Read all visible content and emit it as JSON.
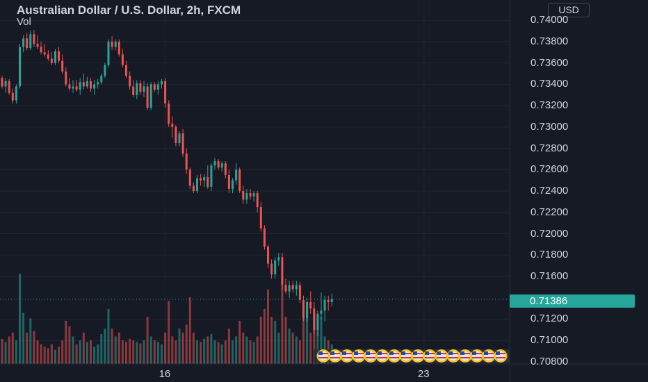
{
  "header": {
    "title": "Australian Dollar / U.S. Dollar, 2h, FXCM",
    "indicator": "Vol",
    "currency_button": "USD"
  },
  "price_axis": {
    "ticks": [
      "0.74000",
      "0.73800",
      "0.73600",
      "0.73400",
      "0.73200",
      "0.73000",
      "0.72800",
      "0.72600",
      "0.72400",
      "0.72200",
      "0.72000",
      "0.71800",
      "0.71600",
      "0.71200",
      "0.71000",
      "0.70800"
    ],
    "current_price": "0.71386"
  },
  "time_axis": {
    "ticks": [
      "16",
      "23"
    ]
  },
  "colors": {
    "background": "#161a25",
    "up": "#26a69a",
    "down": "#ef5350",
    "grid": "#232632"
  },
  "chart_data": {
    "type": "candlestick",
    "symbol": "AUDUSD",
    "interval": "2h",
    "source": "FXCM",
    "ylim": [
      0.7078,
      0.7419
    ],
    "grid": true,
    "current_price": 0.71386,
    "x_ticks": [
      {
        "label": "16",
        "index": 46
      },
      {
        "label": "23",
        "index": 119
      }
    ],
    "candles": [
      [
        0.7346,
        0.7348,
        0.7336,
        0.7338,
        32
      ],
      [
        0.7338,
        0.7346,
        0.7332,
        0.7343,
        28
      ],
      [
        0.7343,
        0.7345,
        0.733,
        0.7332,
        35
      ],
      [
        0.7332,
        0.7336,
        0.7322,
        0.7325,
        40
      ],
      [
        0.7325,
        0.734,
        0.7322,
        0.7338,
        30
      ],
      [
        0.7338,
        0.7378,
        0.7336,
        0.7375,
        115
      ],
      [
        0.7375,
        0.7386,
        0.737,
        0.7383,
        65
      ],
      [
        0.7383,
        0.7388,
        0.7372,
        0.7374,
        40
      ],
      [
        0.7374,
        0.739,
        0.7372,
        0.7387,
        58
      ],
      [
        0.7387,
        0.7391,
        0.7375,
        0.7378,
        42
      ],
      [
        0.7378,
        0.7386,
        0.7373,
        0.7375,
        30
      ],
      [
        0.7375,
        0.738,
        0.7368,
        0.737,
        25
      ],
      [
        0.737,
        0.7378,
        0.7366,
        0.7368,
        22
      ],
      [
        0.7368,
        0.7372,
        0.7362,
        0.7364,
        20
      ],
      [
        0.7364,
        0.737,
        0.7358,
        0.736,
        25
      ],
      [
        0.736,
        0.7373,
        0.7358,
        0.7371,
        18
      ],
      [
        0.7371,
        0.7375,
        0.736,
        0.7362,
        22
      ],
      [
        0.7362,
        0.7368,
        0.735,
        0.7352,
        30
      ],
      [
        0.7352,
        0.7356,
        0.7338,
        0.734,
        55
      ],
      [
        0.734,
        0.7346,
        0.7334,
        0.7336,
        48
      ],
      [
        0.7336,
        0.7344,
        0.7332,
        0.7338,
        35
      ],
      [
        0.7338,
        0.7344,
        0.7333,
        0.7335,
        25
      ],
      [
        0.7335,
        0.7346,
        0.733,
        0.7342,
        30
      ],
      [
        0.7342,
        0.735,
        0.7335,
        0.7338,
        40
      ],
      [
        0.7338,
        0.7347,
        0.7336,
        0.7343,
        28
      ],
      [
        0.7343,
        0.7346,
        0.7333,
        0.7336,
        30
      ],
      [
        0.7336,
        0.7344,
        0.733,
        0.734,
        22
      ],
      [
        0.734,
        0.7345,
        0.7336,
        0.7342,
        25
      ],
      [
        0.7342,
        0.735,
        0.734,
        0.7348,
        38
      ],
      [
        0.7348,
        0.736,
        0.7346,
        0.7358,
        45
      ],
      [
        0.7358,
        0.7382,
        0.7356,
        0.738,
        70
      ],
      [
        0.738,
        0.7385,
        0.7372,
        0.7375,
        45
      ],
      [
        0.7375,
        0.7382,
        0.7372,
        0.738,
        35
      ],
      [
        0.738,
        0.7382,
        0.7366,
        0.7368,
        40
      ],
      [
        0.7368,
        0.7373,
        0.7356,
        0.7358,
        30
      ],
      [
        0.7358,
        0.7362,
        0.7346,
        0.7348,
        28
      ],
      [
        0.7348,
        0.7352,
        0.7335,
        0.7338,
        32
      ],
      [
        0.7338,
        0.7344,
        0.7328,
        0.733,
        30
      ],
      [
        0.733,
        0.7344,
        0.7326,
        0.7341,
        28
      ],
      [
        0.7341,
        0.7344,
        0.733,
        0.7333,
        26
      ],
      [
        0.7333,
        0.7343,
        0.7328,
        0.7338,
        30
      ],
      [
        0.7338,
        0.7341,
        0.7316,
        0.7318,
        60
      ],
      [
        0.7318,
        0.7342,
        0.7316,
        0.734,
        35
      ],
      [
        0.734,
        0.7342,
        0.7333,
        0.7335,
        30
      ],
      [
        0.7335,
        0.7343,
        0.733,
        0.734,
        28
      ],
      [
        0.734,
        0.7345,
        0.7336,
        0.7343,
        25
      ],
      [
        0.7343,
        0.7346,
        0.7318,
        0.7322,
        40
      ],
      [
        0.7322,
        0.7325,
        0.73,
        0.7303,
        80
      ],
      [
        0.7303,
        0.731,
        0.729,
        0.73,
        35
      ],
      [
        0.73,
        0.7302,
        0.7282,
        0.7285,
        30
      ],
      [
        0.7285,
        0.7296,
        0.7282,
        0.7294,
        45
      ],
      [
        0.7294,
        0.7298,
        0.7272,
        0.7275,
        40
      ],
      [
        0.7275,
        0.728,
        0.7256,
        0.726,
        50
      ],
      [
        0.726,
        0.7262,
        0.7242,
        0.7245,
        85
      ],
      [
        0.7245,
        0.7248,
        0.7238,
        0.724,
        40
      ],
      [
        0.724,
        0.7255,
        0.7238,
        0.7252,
        30
      ],
      [
        0.7252,
        0.7256,
        0.7245,
        0.725,
        28
      ],
      [
        0.725,
        0.7256,
        0.7244,
        0.7253,
        32
      ],
      [
        0.7253,
        0.7264,
        0.7242,
        0.7244,
        35
      ],
      [
        0.7244,
        0.7266,
        0.724,
        0.7264,
        38
      ],
      [
        0.7264,
        0.7271,
        0.726,
        0.7268,
        30
      ],
      [
        0.7268,
        0.727,
        0.726,
        0.7262,
        28
      ],
      [
        0.7262,
        0.7268,
        0.7258,
        0.7266,
        25
      ],
      [
        0.7266,
        0.7268,
        0.7252,
        0.7255,
        30
      ],
      [
        0.7255,
        0.726,
        0.7238,
        0.7242,
        45
      ],
      [
        0.7242,
        0.7252,
        0.7238,
        0.725,
        30
      ],
      [
        0.725,
        0.7266,
        0.7246,
        0.726,
        35
      ],
      [
        0.726,
        0.7262,
        0.7238,
        0.724,
        55
      ],
      [
        0.724,
        0.7245,
        0.7228,
        0.7232,
        40
      ],
      [
        0.7232,
        0.7242,
        0.7228,
        0.7238,
        35
      ],
      [
        0.7238,
        0.7242,
        0.7232,
        0.7235,
        30
      ],
      [
        0.7235,
        0.724,
        0.723,
        0.7238,
        28
      ],
      [
        0.7238,
        0.724,
        0.722,
        0.7225,
        35
      ],
      [
        0.7225,
        0.723,
        0.7202,
        0.7205,
        60
      ],
      [
        0.7205,
        0.7208,
        0.7185,
        0.7188,
        70
      ],
      [
        0.7188,
        0.719,
        0.7168,
        0.7172,
        95
      ],
      [
        0.7172,
        0.7176,
        0.7158,
        0.7162,
        60
      ],
      [
        0.7162,
        0.7178,
        0.7158,
        0.7175,
        55
      ],
      [
        0.7175,
        0.7182,
        0.717,
        0.7178,
        40
      ],
      [
        0.7178,
        0.7182,
        0.7148,
        0.7152,
        100
      ],
      [
        0.7152,
        0.7158,
        0.7144,
        0.7146,
        60
      ],
      [
        0.7146,
        0.7156,
        0.714,
        0.7152,
        45
      ],
      [
        0.7152,
        0.7156,
        0.7145,
        0.7148,
        40
      ],
      [
        0.7148,
        0.7156,
        0.7142,
        0.7152,
        35
      ],
      [
        0.7152,
        0.7155,
        0.7135,
        0.7138,
        30
      ],
      [
        0.7138,
        0.7142,
        0.7118,
        0.7121,
        65
      ],
      [
        0.7121,
        0.714,
        0.7118,
        0.7136,
        70
      ],
      [
        0.7136,
        0.7146,
        0.7125,
        0.713,
        40
      ],
      [
        0.713,
        0.7136,
        0.7106,
        0.711,
        55
      ],
      [
        0.711,
        0.7128,
        0.7104,
        0.7125,
        45
      ],
      [
        0.7125,
        0.7145,
        0.712,
        0.7128,
        60
      ],
      [
        0.7128,
        0.7142,
        0.7118,
        0.7138,
        35
      ],
      [
        0.7138,
        0.7142,
        0.7128,
        0.7136,
        30
      ],
      [
        0.7136,
        0.7144,
        0.7132,
        0.7139,
        25
      ]
    ]
  }
}
